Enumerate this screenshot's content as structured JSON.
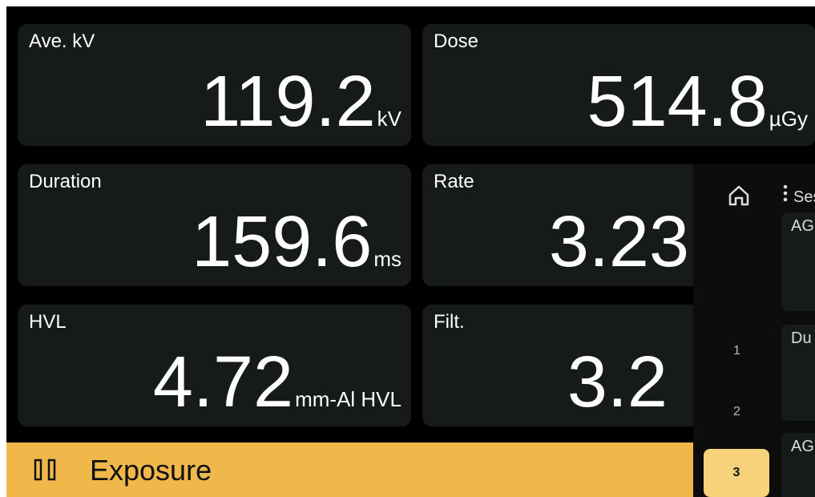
{
  "cards": [
    {
      "label": "Ave. kV",
      "value": "119.2",
      "unit": "kV"
    },
    {
      "label": "Dose",
      "value": "514.8",
      "unit": "µGy"
    },
    {
      "label": "Duration",
      "value": "159.6",
      "unit": "ms"
    },
    {
      "label": "Rate",
      "value": "3.23"
    },
    {
      "label": "HVL",
      "value": "4.72",
      "unit": "mm-Al HVL"
    },
    {
      "label": "Filt.",
      "value": "3.2"
    }
  ],
  "bottom_bar": {
    "title": "Exposure"
  },
  "side_panel": {
    "menu_label": "Ses",
    "page_numbers": [
      "1",
      "2",
      "3"
    ],
    "cards": [
      "AG",
      "Du",
      "AG"
    ]
  }
}
